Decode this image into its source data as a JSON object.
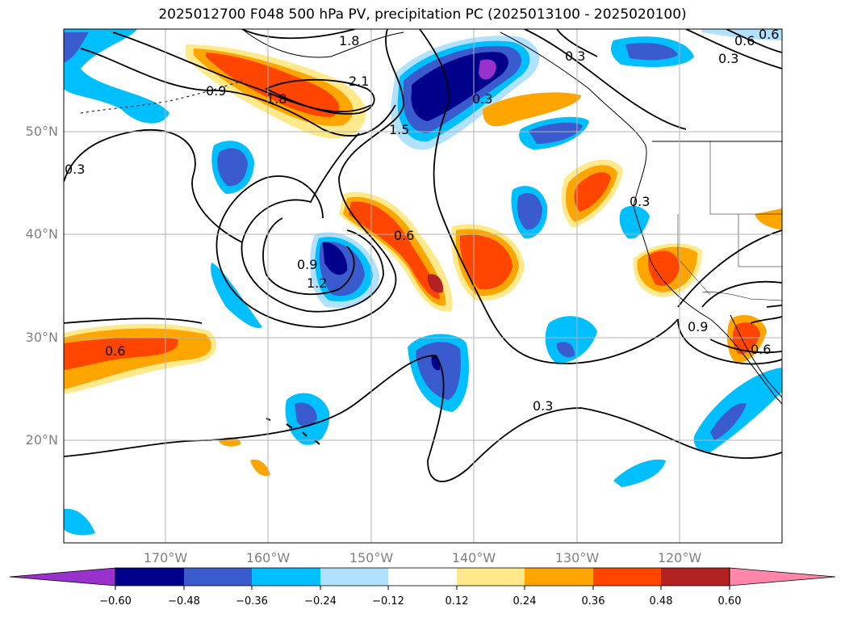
{
  "title": "2025012700 F048 500 hPa PV, precipitation PC (2025013100 - 2025020100)",
  "lat_labels": [
    "50°N",
    "40°N",
    "30°N",
    "20°N"
  ],
  "lon_labels": [
    "170°W",
    "160°W",
    "150°W",
    "140°W",
    "130°W",
    "120°W"
  ],
  "colorbar": {
    "ticks": [
      "−0.60",
      "−0.48",
      "−0.36",
      "−0.24",
      "−0.12",
      "0.12",
      "0.24",
      "0.36",
      "0.48",
      "0.60"
    ],
    "colors": [
      "#9932cc",
      "#00008b",
      "#3a5bcd",
      "#00bfff",
      "#b0e2ff",
      "#ffffff",
      "#ffe98a",
      "#ffa500",
      "#ff4500",
      "#b22222",
      "#ff86a8"
    ]
  },
  "contour_labels": [
    "1.8",
    "2.1",
    "0.9",
    "1.8",
    "1.5",
    "0.3",
    "0.3",
    "0.6",
    "0.9",
    "0.6",
    "1.2",
    "0.6",
    "0.3",
    "0.9",
    "0.6",
    "0.3",
    "0.3",
    "0.6",
    "0.3"
  ]
}
